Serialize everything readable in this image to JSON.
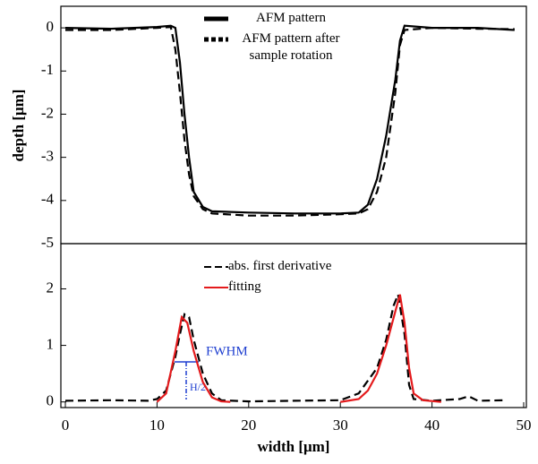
{
  "chart_data": [
    {
      "type": "line",
      "ylabel": "depth [μm]",
      "xlim": [
        0,
        50
      ],
      "ylim": [
        -5,
        0.5
      ],
      "yticks": [
        0,
        -1,
        -2,
        -3,
        -4,
        -5
      ],
      "series": [
        {
          "name": "AFM pattern",
          "color": "#000000",
          "dash": "solid",
          "x": [
            0,
            5,
            10,
            11.5,
            12,
            12.5,
            13,
            13.5,
            14,
            15,
            16,
            20,
            25,
            30,
            32,
            33,
            34,
            35,
            36,
            36.5,
            37,
            40,
            45,
            49
          ],
          "values": [
            0,
            -0.02,
            0.02,
            0.05,
            0,
            -0.8,
            -2,
            -3,
            -3.8,
            -4.15,
            -4.25,
            -4.28,
            -4.3,
            -4.3,
            -4.28,
            -4.1,
            -3.5,
            -2.5,
            -1.2,
            -0.3,
            0.05,
            0,
            0,
            -0.05
          ]
        },
        {
          "name": "AFM pattern after sample rotation",
          "color": "#000000",
          "dash": "dashed",
          "x": [
            0,
            5,
            10,
            11.5,
            12,
            12.5,
            13,
            13.5,
            14,
            15,
            16,
            20,
            25,
            30,
            32,
            33,
            34,
            35,
            36,
            36.5,
            37,
            40,
            45,
            49
          ],
          "values": [
            -0.05,
            -0.05,
            0,
            0.02,
            -0.5,
            -1.5,
            -2.6,
            -3.4,
            -3.9,
            -4.2,
            -4.3,
            -4.35,
            -4.35,
            -4.32,
            -4.3,
            -4.2,
            -3.8,
            -3,
            -1.5,
            -0.4,
            -0.05,
            0,
            -0.02,
            -0.03
          ]
        }
      ]
    },
    {
      "type": "line",
      "xlabel": "width [μm]",
      "xlim": [
        0,
        50
      ],
      "xticks": [
        0,
        10,
        20,
        30,
        40,
        50
      ],
      "ylim": [
        -0.1,
        2.8
      ],
      "yticks": [
        0,
        1,
        2
      ],
      "annotations": [
        "FWHM",
        "H/2"
      ],
      "series": [
        {
          "name": "abs. first derivative",
          "color": "#000000",
          "dash": "dashed",
          "x": [
            0,
            5,
            9,
            10,
            11,
            12,
            12.5,
            13,
            13.5,
            14,
            15,
            16,
            17,
            20,
            25,
            30,
            32,
            34,
            35,
            35.8,
            36.3,
            37,
            37.5,
            38,
            40,
            43,
            44,
            45,
            48
          ],
          "values": [
            0.02,
            0.03,
            0.02,
            0.05,
            0.2,
            0.8,
            1.2,
            1.55,
            1.5,
            1.1,
            0.5,
            0.15,
            0.03,
            0.01,
            0.02,
            0.03,
            0.15,
            0.6,
            1.1,
            1.7,
            1.9,
            1.2,
            0.3,
            0.05,
            0.02,
            0.05,
            0.1,
            0.02,
            0.03
          ]
        },
        {
          "name": "fitting",
          "color": "#e41a1c",
          "dash": "solid",
          "x": [
            10,
            11,
            12,
            12.7,
            13.3,
            14,
            15,
            16,
            17,
            18,
            null,
            30,
            32,
            33,
            34,
            35,
            36,
            36.5,
            37,
            37.5,
            38,
            39,
            41
          ],
          "values": [
            0,
            0.15,
            0.9,
            1.5,
            1.4,
            0.9,
            0.35,
            0.08,
            0.01,
            0,
            null,
            0,
            0.05,
            0.2,
            0.5,
            1.0,
            1.6,
            1.9,
            1.4,
            0.6,
            0.15,
            0.03,
            0
          ]
        }
      ]
    }
  ]
}
